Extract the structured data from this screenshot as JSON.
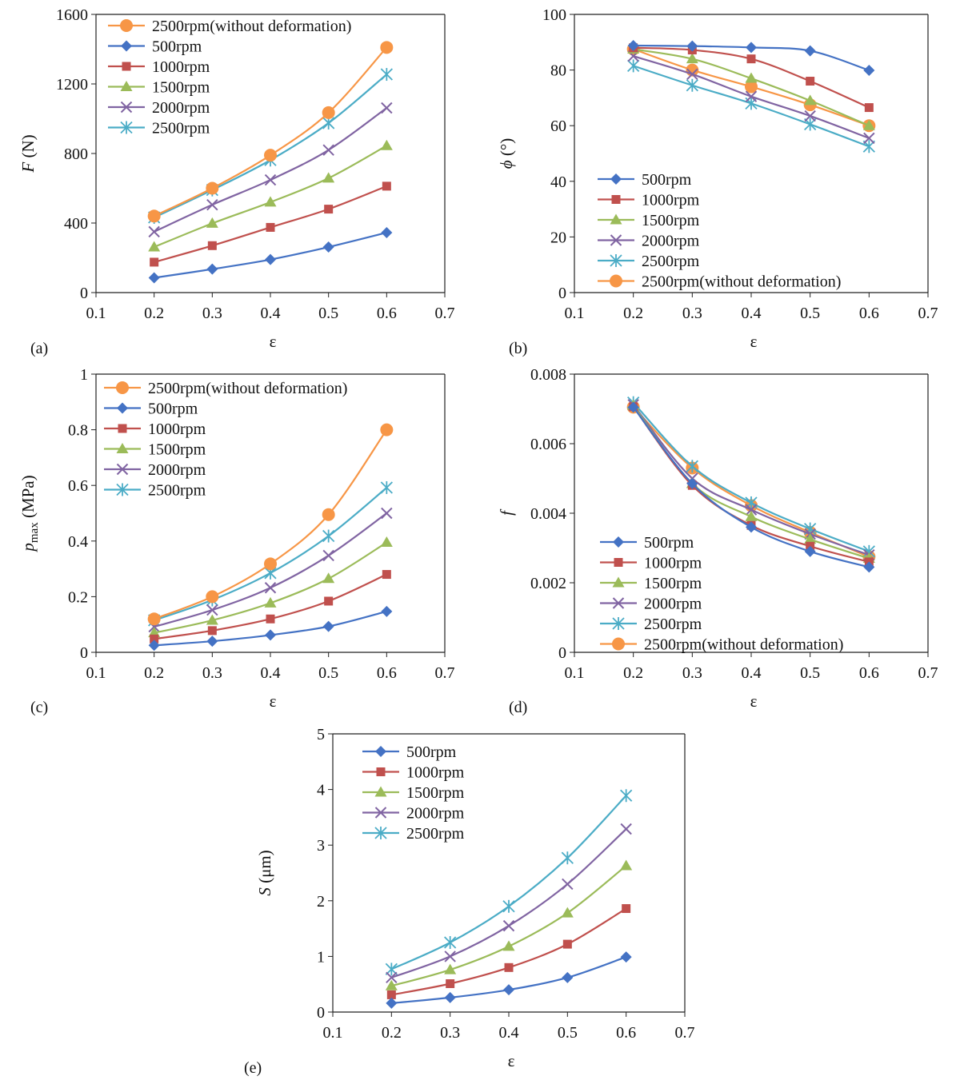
{
  "figure": {
    "styles": {
      "500rpm": {
        "color": "#4472C4",
        "marker": "diamond"
      },
      "1000rpm": {
        "color": "#C0504D",
        "marker": "square"
      },
      "1500rpm": {
        "color": "#9BBB59",
        "marker": "triangle"
      },
      "2000rpm": {
        "color": "#8064A2",
        "marker": "x"
      },
      "2500rpm": {
        "color": "#4BACC6",
        "marker": "star"
      },
      "2500rpm(without deformation)": {
        "color": "#F79646",
        "marker": "circle"
      }
    }
  },
  "chart_data": [
    {
      "id": "a",
      "panel_label": "(a)",
      "type": "line",
      "ylabel_italic": "F",
      "ylabel_rest": " (N)",
      "xlabel": "ε",
      "x": [
        0.2,
        0.3,
        0.4,
        0.5,
        0.6
      ],
      "xlim": [
        0.1,
        0.7
      ],
      "xticks": [
        "0.1",
        "0.2",
        "0.3",
        "0.4",
        "0.5",
        "0.6",
        "0.7"
      ],
      "ylim": [
        0,
        1600
      ],
      "yticks": [
        "0",
        "400",
        "800",
        "1200",
        "1600"
      ],
      "legend_position": "top-left",
      "series": [
        {
          "name": "2500rpm(without deformation)",
          "values": [
            440,
            600,
            790,
            1035,
            1410
          ]
        },
        {
          "name": "500rpm",
          "values": [
            85,
            135,
            190,
            262,
            345
          ]
        },
        {
          "name": "1000rpm",
          "values": [
            175,
            270,
            375,
            480,
            612
          ]
        },
        {
          "name": "1500rpm",
          "values": [
            262,
            398,
            520,
            658,
            845
          ]
        },
        {
          "name": "2000rpm",
          "values": [
            350,
            505,
            648,
            820,
            1062
          ]
        },
        {
          "name": "2500rpm",
          "values": [
            432,
            590,
            762,
            975,
            1255
          ]
        }
      ]
    },
    {
      "id": "b",
      "panel_label": "(b)",
      "type": "line",
      "ylabel_italic": "ϕ",
      "ylabel_rest": " (°)",
      "xlabel": "ε",
      "x": [
        0.2,
        0.3,
        0.4,
        0.5,
        0.6
      ],
      "xlim": [
        0.1,
        0.7
      ],
      "xticks": [
        "0.1",
        "0.2",
        "0.3",
        "0.4",
        "0.5",
        "0.6",
        "0.7"
      ],
      "ylim": [
        0,
        100
      ],
      "yticks": [
        "0",
        "20",
        "40",
        "60",
        "80",
        "100"
      ],
      "legend_position": "bottom-left",
      "series": [
        {
          "name": "500rpm",
          "values": [
            88.8,
            88.6,
            88.1,
            86.9,
            79.9
          ]
        },
        {
          "name": "1000rpm",
          "values": [
            88.0,
            87.2,
            84.0,
            76.0,
            66.5
          ]
        },
        {
          "name": "1500rpm",
          "values": [
            87.5,
            84.0,
            77.0,
            69.0,
            60.0
          ]
        },
        {
          "name": "2000rpm",
          "values": [
            85.0,
            78.5,
            70.5,
            63.5,
            55.5
          ]
        },
        {
          "name": "2500rpm",
          "values": [
            81.5,
            74.5,
            68.0,
            60.5,
            52.5
          ]
        },
        {
          "name": "2500rpm(without deformation)",
          "values": [
            87.5,
            80.0,
            74.0,
            67.5,
            60.0
          ]
        }
      ]
    },
    {
      "id": "c",
      "panel_label": "(c)",
      "type": "line",
      "ylabel_italic": "p",
      "ylabel_sub": "max",
      "ylabel_rest": " (MPa)",
      "xlabel": "ε",
      "x": [
        0.2,
        0.3,
        0.4,
        0.5,
        0.6
      ],
      "xlim": [
        0.1,
        0.7
      ],
      "xticks": [
        "0.1",
        "0.2",
        "0.3",
        "0.4",
        "0.5",
        "0.6",
        "0.7"
      ],
      "ylim": [
        0,
        1
      ],
      "yticks": [
        "0",
        "0.2",
        "0.4",
        "0.6",
        "0.8",
        "1"
      ],
      "legend_position": "top-left",
      "series": [
        {
          "name": "2500rpm(without deformation)",
          "values": [
            0.12,
            0.2,
            0.318,
            0.495,
            0.8
          ]
        },
        {
          "name": "500rpm",
          "values": [
            0.025,
            0.04,
            0.062,
            0.093,
            0.147
          ]
        },
        {
          "name": "1000rpm",
          "values": [
            0.048,
            0.078,
            0.12,
            0.184,
            0.28
          ]
        },
        {
          "name": "1500rpm",
          "values": [
            0.07,
            0.115,
            0.177,
            0.265,
            0.395
          ]
        },
        {
          "name": "2000rpm",
          "values": [
            0.092,
            0.152,
            0.232,
            0.348,
            0.5
          ]
        },
        {
          "name": "2500rpm",
          "values": [
            0.115,
            0.188,
            0.285,
            0.418,
            0.592
          ]
        }
      ]
    },
    {
      "id": "d",
      "panel_label": "(d)",
      "type": "line",
      "ylabel_italic": "f",
      "ylabel_rest": "",
      "xlabel": "ε",
      "x": [
        0.2,
        0.3,
        0.4,
        0.5,
        0.6
      ],
      "xlim": [
        0.1,
        0.7
      ],
      "xticks": [
        "0.1",
        "0.2",
        "0.3",
        "0.4",
        "0.5",
        "0.6",
        "0.7"
      ],
      "ylim": [
        0,
        0.008
      ],
      "yticks": [
        "0",
        "0.002",
        "0.004",
        "0.006",
        "0.008"
      ],
      "legend_position": "bottom-left",
      "series": [
        {
          "name": "500rpm",
          "values": [
            0.00705,
            0.00485,
            0.0036,
            0.0029,
            0.00245
          ]
        },
        {
          "name": "1000rpm",
          "values": [
            0.00706,
            0.0048,
            0.00365,
            0.00305,
            0.0026
          ]
        },
        {
          "name": "1500rpm",
          "values": [
            0.0071,
            0.00485,
            0.0039,
            0.00325,
            0.0027
          ]
        },
        {
          "name": "2000rpm",
          "values": [
            0.00712,
            0.005,
            0.0041,
            0.0034,
            0.0028
          ]
        },
        {
          "name": "2500rpm",
          "values": [
            0.00718,
            0.00535,
            0.0043,
            0.00355,
            0.0029
          ]
        },
        {
          "name": "2500rpm(without deformation)",
          "values": [
            0.00705,
            0.0053,
            0.00422,
            0.00345,
            0.00275
          ]
        }
      ]
    },
    {
      "id": "e",
      "panel_label": "(e)",
      "type": "line",
      "ylabel_italic": "S",
      "ylabel_rest": " (μm)",
      "xlabel": "ε",
      "x": [
        0.2,
        0.3,
        0.4,
        0.5,
        0.6
      ],
      "xlim": [
        0.1,
        0.7
      ],
      "xticks": [
        "0.1",
        "0.2",
        "0.3",
        "0.4",
        "0.5",
        "0.6",
        "0.7"
      ],
      "ylim": [
        0,
        5
      ],
      "yticks": [
        "0",
        "1",
        "2",
        "3",
        "4",
        "5"
      ],
      "legend_position": "top-left",
      "series": [
        {
          "name": "500rpm",
          "values": [
            0.16,
            0.26,
            0.4,
            0.62,
            0.99
          ]
        },
        {
          "name": "1000rpm",
          "values": [
            0.31,
            0.51,
            0.8,
            1.22,
            1.86
          ]
        },
        {
          "name": "1500rpm",
          "values": [
            0.47,
            0.76,
            1.18,
            1.78,
            2.63
          ]
        },
        {
          "name": "2000rpm",
          "values": [
            0.62,
            1.0,
            1.55,
            2.3,
            3.29
          ]
        },
        {
          "name": "2500rpm",
          "values": [
            0.77,
            1.25,
            1.9,
            2.77,
            3.89
          ]
        }
      ]
    }
  ]
}
